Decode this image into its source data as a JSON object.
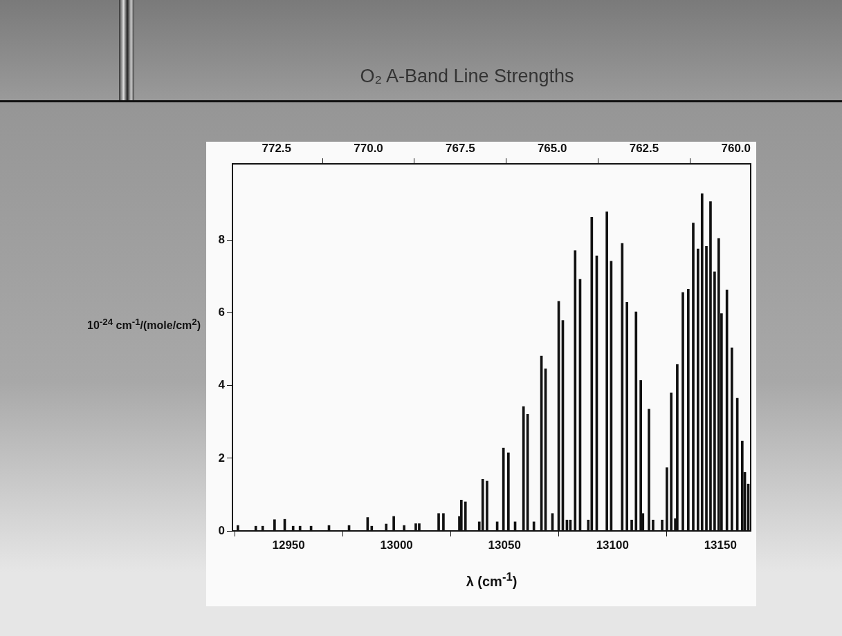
{
  "chart_data": {
    "type": "bar",
    "title": "O₂ A-Band Line Strengths",
    "xlabel": "λ (cm$^{-1}$)",
    "ylabel": "10$^{-24}$ cm$^{-1}$/(mole/cm$^{2}$)",
    "x": [
      12926.5,
      12934.8,
      12938.0,
      12943.5,
      12948.2,
      12952.1,
      12955.3,
      12960.4,
      12968.7,
      12978.0,
      12986.6,
      12988.5,
      12995.2,
      12998.7,
      13003.5,
      13008.9,
      13010.5,
      13019.5,
      13021.7,
      13029.1,
      13030.0,
      13031.9,
      13038.3,
      13039.9,
      13041.9,
      13046.6,
      13049.5,
      13051.8,
      13054.9,
      13058.8,
      13060.7,
      13063.6,
      13067.1,
      13069.0,
      13072.2,
      13075.1,
      13077.0,
      13078.9,
      13080.5,
      13082.7,
      13085.0,
      13088.8,
      13090.4,
      13092.7,
      13097.4,
      13099.4,
      13104.5,
      13106.7,
      13108.9,
      13110.9,
      13113.1,
      13114.1,
      13116.9,
      13118.8,
      13123.0,
      13125.2,
      13127.2,
      13129.1,
      13130.0,
      13132.6,
      13135.1,
      13137.4,
      13139.6,
      13141.5,
      13143.5,
      13145.4,
      13147.3,
      13149.2,
      13150.5,
      13153.0,
      13155.3,
      13157.8,
      13160.1,
      13161.3,
      13162.9
    ],
    "values": [
      0.15,
      0.13,
      0.13,
      0.31,
      0.32,
      0.13,
      0.13,
      0.13,
      0.15,
      0.15,
      0.37,
      0.13,
      0.19,
      0.4,
      0.15,
      0.2,
      0.2,
      0.48,
      0.48,
      0.4,
      0.85,
      0.8,
      0.25,
      1.42,
      1.37,
      0.25,
      2.28,
      2.15,
      0.25,
      3.42,
      3.21,
      0.25,
      4.81,
      4.46,
      0.48,
      6.32,
      5.79,
      0.3,
      0.3,
      7.71,
      6.92,
      0.3,
      8.63,
      7.57,
      8.78,
      7.42,
      7.91,
      6.29,
      0.3,
      6.03,
      4.14,
      0.48,
      3.35,
      0.3,
      0.3,
      1.74,
      3.8,
      0.34,
      4.58,
      6.56,
      6.65,
      8.47,
      7.76,
      9.28,
      7.83,
      9.06,
      7.13,
      8.05,
      5.98,
      6.63,
      5.04,
      3.65,
      2.47,
      1.61,
      1.29
    ],
    "color": "#111111",
    "xlim": [
      12924,
      13164
    ],
    "xticks": [
      12950,
      13000,
      13050,
      13100,
      13150
    ],
    "ylim": [
      0,
      10.1
    ],
    "yticks": [
      0,
      2,
      4,
      6,
      8
    ],
    "x2lim": [
      773.7,
      759.6
    ],
    "x2ticks": [
      772.5,
      {
        "value": 770,
        "label": "770.0"
      },
      767.5,
      {
        "value": 765,
        "label": "765.0"
      },
      762.5,
      {
        "value": 760,
        "label": "760.0"
      }
    ]
  }
}
